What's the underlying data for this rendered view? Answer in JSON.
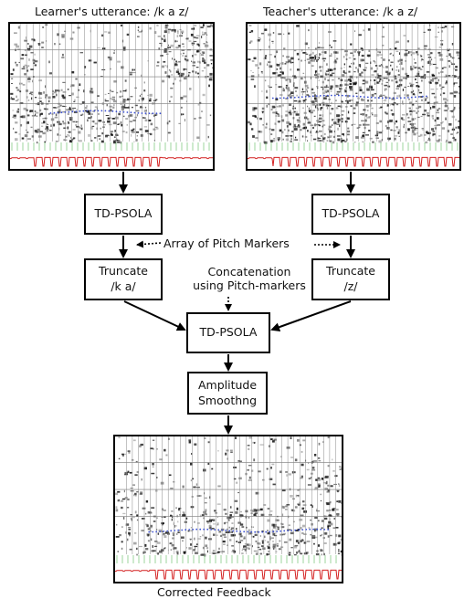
{
  "captions": {
    "learner": "Learner's utterance: /k a z/",
    "teacher": "Teacher's utterance: /k a z/",
    "output": "Corrected Feedback"
  },
  "boxes": {
    "tdpsola_left": "TD-PSOLA",
    "tdpsola_right": "TD-PSOLA",
    "truncate_left": "Truncate\n/k a/",
    "truncate_right": "Truncate\n/z/",
    "tdpsola_center": "TD-PSOLA",
    "amplitude": "Amplitude\nSmoothng"
  },
  "annotations": {
    "pitch_markers": "Array of Pitch Markers",
    "concatenation": "Concatenation\nusing Pitch-markers"
  },
  "colors": {
    "waveform": "#d42020",
    "pitch_dots": "#3a4fd0",
    "marker_green": "#5cb85c"
  }
}
